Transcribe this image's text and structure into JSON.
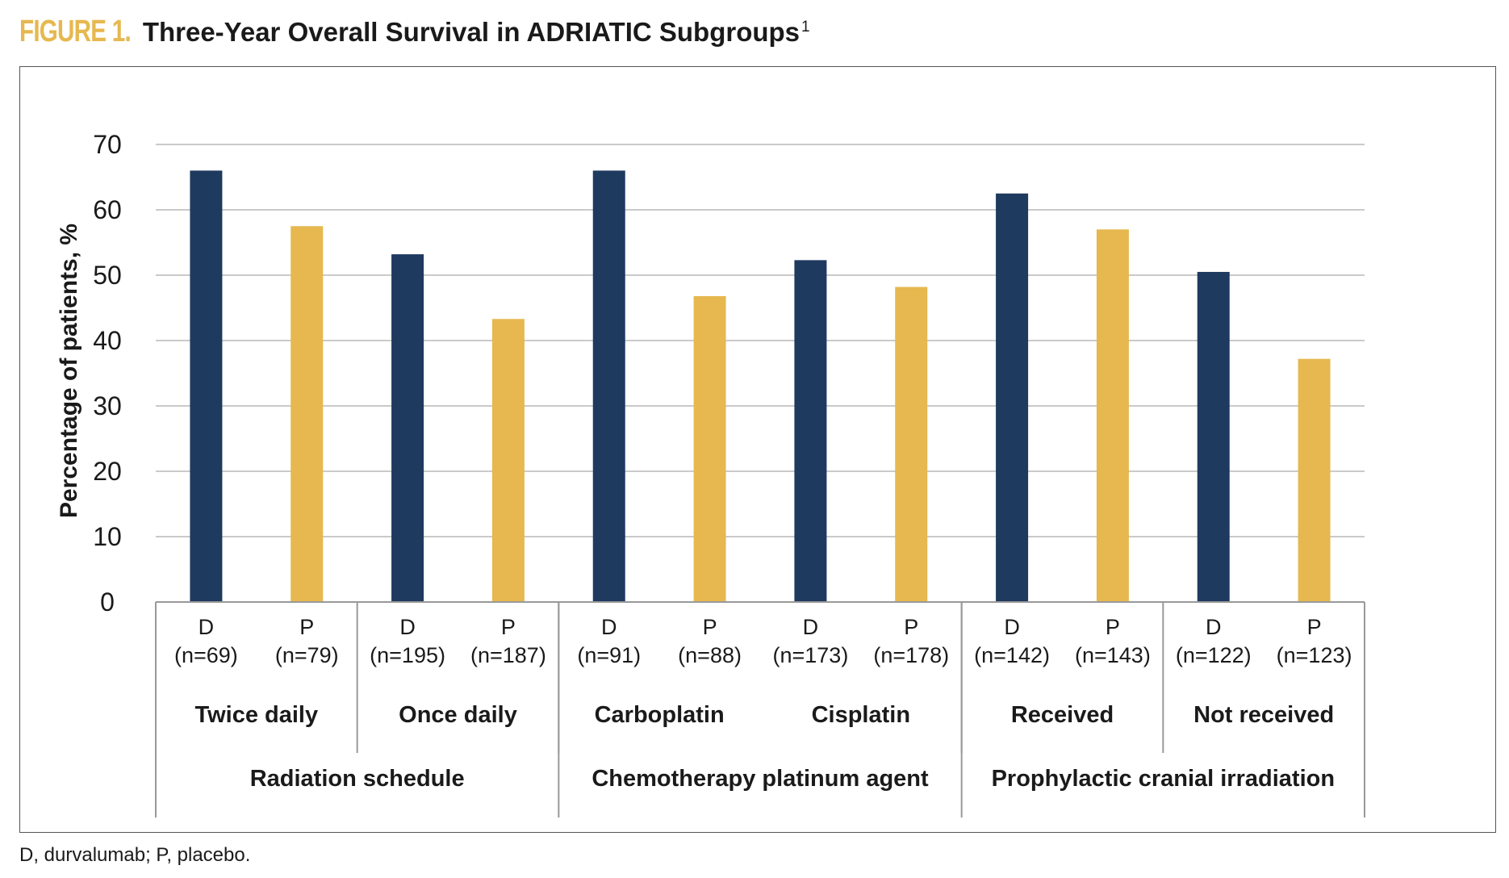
{
  "figure": {
    "label": "FIGURE 1.",
    "title": "Three-Year Overall Survival in ADRIATIC Subgroups",
    "title_superscript": "1",
    "footnote": "D, durvalumab; P, placebo."
  },
  "colors": {
    "durvalumab": "#1f3a5f",
    "placebo": "#e6b84f",
    "label_accent": "#e6b84f",
    "grid": "#b8b8b8",
    "axis": "#999999",
    "text": "#1a1a1a"
  },
  "chart_data": {
    "type": "bar",
    "title": "Three-Year Overall Survival in ADRIATIC Subgroups",
    "ylabel": "Percentage of patients, %",
    "xlabel": "",
    "ylim": [
      0,
      70
    ],
    "yticks": [
      0,
      10,
      20,
      30,
      40,
      50,
      60,
      70
    ],
    "grid": true,
    "legend": "none",
    "bars": [
      {
        "arm": "D",
        "n": "(n=69)",
        "value": 66.0,
        "subgroup": "Twice daily"
      },
      {
        "arm": "P",
        "n": "(n=79)",
        "value": 57.5,
        "subgroup": "Twice daily"
      },
      {
        "arm": "D",
        "n": "(n=195)",
        "value": 53.2,
        "subgroup": "Once daily"
      },
      {
        "arm": "P",
        "n": "(n=187)",
        "value": 43.3,
        "subgroup": "Once daily"
      },
      {
        "arm": "D",
        "n": "(n=91)",
        "value": 66.0,
        "subgroup": "Carboplatin"
      },
      {
        "arm": "P",
        "n": "(n=88)",
        "value": 46.8,
        "subgroup": "Carboplatin"
      },
      {
        "arm": "D",
        "n": "(n=173)",
        "value": 52.3,
        "subgroup": "Cisplatin"
      },
      {
        "arm": "P",
        "n": "(n=178)",
        "value": 48.2,
        "subgroup": "Cisplatin"
      },
      {
        "arm": "D",
        "n": "(n=142)",
        "value": 62.5,
        "subgroup": "Received"
      },
      {
        "arm": "P",
        "n": "(n=143)",
        "value": 57.0,
        "subgroup": "Received"
      },
      {
        "arm": "D",
        "n": "(n=122)",
        "value": 50.5,
        "subgroup": "Not received"
      },
      {
        "arm": "P",
        "n": "(n=123)",
        "value": 37.2,
        "subgroup": "Not received"
      }
    ],
    "subgroups": [
      "Twice daily",
      "Once daily",
      "Carboplatin",
      "Cisplatin",
      "Received",
      "Not received"
    ],
    "categories": [
      "Radiation schedule",
      "Chemotherapy platinum agent",
      "Prophylactic cranial irradiation"
    ]
  }
}
